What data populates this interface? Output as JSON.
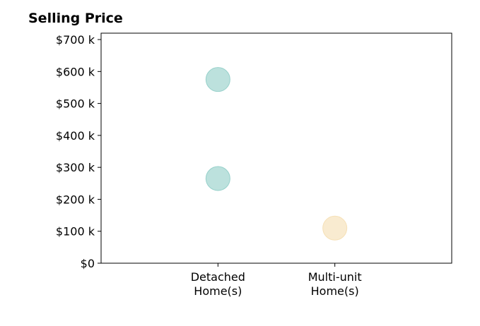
{
  "chart_data": {
    "type": "scatter",
    "title": "Selling Price",
    "xlabel": "",
    "ylabel": "",
    "categories": [
      [
        "Detached",
        "Home(s)"
      ],
      [
        "Multi-unit",
        "Home(s)"
      ]
    ],
    "x_range_categories": [
      -1,
      2
    ],
    "ylim": [
      0,
      720000
    ],
    "y_ticks": [
      0,
      100000,
      200000,
      300000,
      400000,
      500000,
      600000,
      700000
    ],
    "y_tick_labels": [
      "$0",
      "$100 k",
      "$200 k",
      "$300 k",
      "$400 k",
      "$500 k",
      "$600 k",
      "$700 k"
    ],
    "grid": false,
    "points": [
      {
        "category": 0,
        "y": 575000,
        "color": "#8fcdc6"
      },
      {
        "category": 0,
        "y": 265000,
        "color": "#8fcdc6"
      },
      {
        "category": 1,
        "y": 110000,
        "color": "#f5deb0"
      }
    ]
  }
}
